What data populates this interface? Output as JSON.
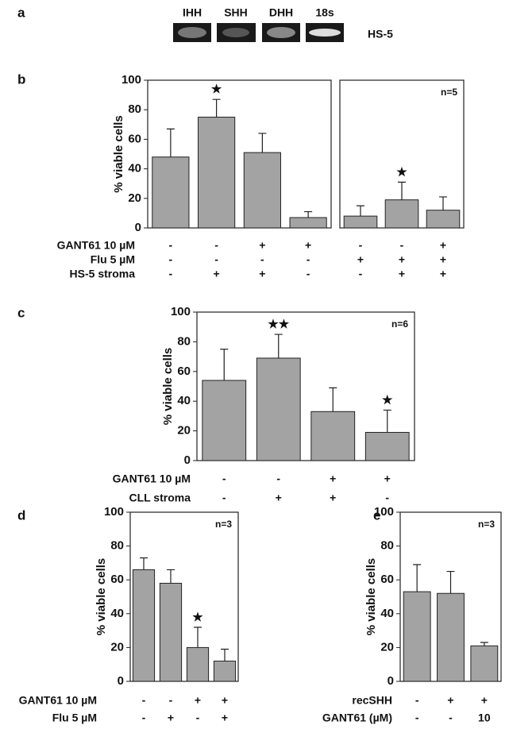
{
  "gel": {
    "panel": "a",
    "lanes": [
      "IHH",
      "SHH",
      "DHH",
      "18s"
    ],
    "cell_line": "HS-5"
  },
  "chart_data": [
    {
      "type": "bar",
      "panel": "b",
      "y_label": "% viable cells",
      "values": [
        48,
        75,
        51,
        7
      ],
      "errors": [
        19,
        12,
        13,
        4
      ],
      "color": "#a3a3a3",
      "ylim": [
        0,
        100
      ],
      "yticks": [
        0,
        20,
        40,
        60,
        80,
        100
      ],
      "stars": [
        {
          "index": 1,
          "text": "★"
        }
      ],
      "conditions": [
        {
          "name": "GANT61 10 µM",
          "marks": [
            "-",
            "-",
            "+",
            "+"
          ]
        },
        {
          "name": "Flu 5 µM",
          "marks": [
            "-",
            "-",
            "-",
            "-"
          ]
        },
        {
          "name": "HS-5 stroma",
          "marks": [
            "-",
            "+",
            "+",
            "-"
          ]
        }
      ]
    },
    {
      "type": "bar",
      "values": [
        8,
        19,
        12
      ],
      "errors": [
        7,
        12,
        9
      ],
      "color": "#a3a3a3",
      "ylim": [
        0,
        100
      ],
      "n_label": "n=5",
      "stars": [
        {
          "index": 1,
          "text": "★"
        }
      ],
      "conditions": [
        {
          "marks": [
            "-",
            "-",
            "+"
          ]
        },
        {
          "marks": [
            "+",
            "+",
            "+"
          ]
        },
        {
          "marks": [
            "-",
            "+",
            "+"
          ]
        }
      ]
    },
    {
      "type": "bar",
      "panel": "c",
      "y_label": "% viable cells",
      "values": [
        54,
        69,
        33,
        19
      ],
      "errors": [
        21,
        16,
        16,
        15
      ],
      "color": "#a3a3a3",
      "ylim": [
        0,
        100
      ],
      "yticks": [
        0,
        20,
        40,
        60,
        80,
        100
      ],
      "n_label": "n=6",
      "stars": [
        {
          "index": 1,
          "text": "★★"
        },
        {
          "index": 3,
          "text": "★"
        }
      ],
      "conditions": [
        {
          "name": "GANT61 10 µM",
          "marks": [
            "-",
            "-",
            "+",
            "+"
          ]
        },
        {
          "name": "CLL stroma",
          "marks": [
            "-",
            "+",
            "+",
            "-"
          ]
        }
      ]
    },
    {
      "type": "bar",
      "panel": "d",
      "y_label": "% viable cells",
      "values": [
        66,
        58,
        20,
        12
      ],
      "errors": [
        7,
        8,
        12,
        7
      ],
      "color": "#a3a3a3",
      "ylim": [
        0,
        100
      ],
      "yticks": [
        0,
        20,
        40,
        60,
        80,
        100
      ],
      "n_label": "n=3",
      "stars": [
        {
          "index": 2,
          "text": "★"
        }
      ],
      "conditions": [
        {
          "name": "GANT61 10 µM",
          "marks": [
            "-",
            "-",
            "+",
            "+"
          ]
        },
        {
          "name": "Flu 5 µM",
          "marks": [
            "-",
            "+",
            "-",
            "+"
          ]
        }
      ]
    },
    {
      "type": "bar",
      "panel": "e",
      "y_label": "% viable cells",
      "values": [
        53,
        52,
        21
      ],
      "errors": [
        16,
        13,
        2
      ],
      "color": "#a3a3a3",
      "ylim": [
        0,
        100
      ],
      "yticks": [
        0,
        20,
        40,
        60,
        80,
        100
      ],
      "n_label": "n=3",
      "conditions": [
        {
          "name": "recSHH",
          "marks": [
            "-",
            "+",
            "+"
          ]
        },
        {
          "name": "GANT61 (µM)",
          "marks": [
            "-",
            "-",
            "10"
          ]
        }
      ]
    }
  ]
}
